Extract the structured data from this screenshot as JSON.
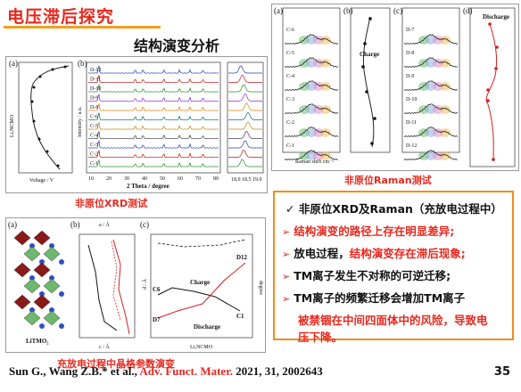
{
  "header": {
    "title": "电压滞后探究",
    "subtitle": "结构演变分析"
  },
  "figures": {
    "xrd": {
      "caption": "非原位XRD测试",
      "xaxis_label": "2 Theta / degree",
      "yaxis_label": "Intensity / a.u.",
      "voltage_axis_label": "Voltage / V",
      "panel_a": "(a)",
      "panel_b": "(b)",
      "sample_labels": [
        "D-12",
        "D-11",
        "D-10",
        "D-9",
        "D-8",
        "C-6",
        "C-5",
        "C-4",
        "C-3",
        "C-2",
        "C-1"
      ],
      "x_ticks": [
        "10",
        "20",
        "30",
        "40",
        "50",
        "60",
        "70",
        "80"
      ],
      "zoom_ticks": [
        "18.0",
        "18.5",
        "19.0",
        "19.5"
      ],
      "voltage_ticks": [
        "4.5",
        "4.0",
        "3.5",
        "3.0",
        "2.5",
        "2.0"
      ]
    },
    "raman": {
      "caption": "非原位Raman测试",
      "panels": [
        "(a)",
        "(b)",
        "(c)",
        "(d)"
      ],
      "xaxis_label": "Raman shift cm⁻¹",
      "charge_label": "Charge",
      "discharge_label": "Discharge",
      "charge_points": [
        "C-6",
        "C-5",
        "C-4",
        "C-3",
        "C-2",
        "C-1"
      ],
      "discharge_points": [
        "D-7",
        "D-8",
        "D-9",
        "D-10",
        "D-11",
        "D-12"
      ]
    },
    "lattice": {
      "caption": "充放电过程中晶格参数演变",
      "panels": [
        "(a)",
        "(b)",
        "(c)"
      ],
      "material_label": "LiTMO₂",
      "top_axis_label": "a / Å",
      "bottom_axis_label": "c / Å",
      "x_axis_label": "LiₓNCMO",
      "y_axis_label": "d / Å",
      "right_axis_label": "degree",
      "charge_label": "Charge",
      "discharge_label": "Discharge",
      "point_labels": [
        "C6",
        "D7",
        "D12",
        "C1"
      ]
    }
  },
  "summary": {
    "check": "✓",
    "heading": "非原位XRD及Raman（充放电过程中）",
    "bullets": [
      {
        "text": "结构演变的路径上存在明显差异;",
        "color": "red"
      },
      {
        "text_dark": "放电过程，",
        "text_red": "结构演变存在滞后现象;"
      },
      {
        "text": "TM离子发生不对称的可逆迁移;",
        "color": "dark"
      },
      {
        "text": "TM离子的频繁迁移会增加TM离子",
        "color": "dark"
      }
    ],
    "continuation_1": "被禁锢在中间四面体中的风险，导致电",
    "continuation_2": "压下降。"
  },
  "citation": {
    "authors": "Sun G., Wang Z.B.* et al., ",
    "journal": "Adv. Funct. Mater.",
    "details": " 2021, 31, 2002643"
  },
  "page_number": "35",
  "colors": {
    "title_red": "#e8281e",
    "accent_orange": "#f08c1e",
    "rule_gold": "#f0a020"
  }
}
